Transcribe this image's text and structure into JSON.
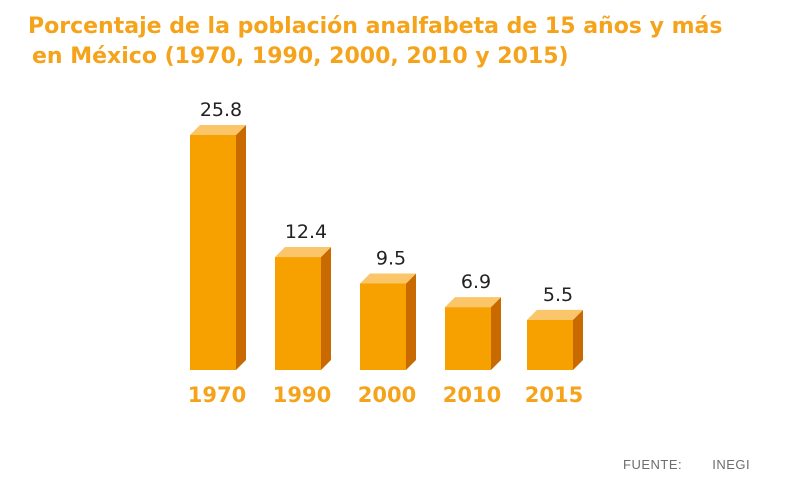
{
  "chart_data": {
    "type": "bar",
    "title_line1": "Porcentaje de la población analfabeta de 15 años y más",
    "title_line2": "en México (1970, 1990, 2000, 2010 y 2015)",
    "categories": [
      "1970",
      "1990",
      "2000",
      "2010",
      "2015"
    ],
    "values": [
      25.8,
      12.4,
      9.5,
      6.9,
      5.5
    ],
    "value_labels": [
      "25.8",
      "12.4",
      "9.5",
      "6.9",
      "5.5"
    ],
    "ylim": [
      0,
      25.8
    ],
    "grid": false,
    "legend": "none"
  },
  "source": {
    "label": "FUENTE:",
    "value": "INEGI"
  },
  "colors": {
    "title": "#f5a31b",
    "bar_front": "#f7a100",
    "bar_top": "#fbc56a",
    "bar_side": "#c86a00",
    "category_label": "#f5a31b",
    "value_label": "#222222"
  }
}
